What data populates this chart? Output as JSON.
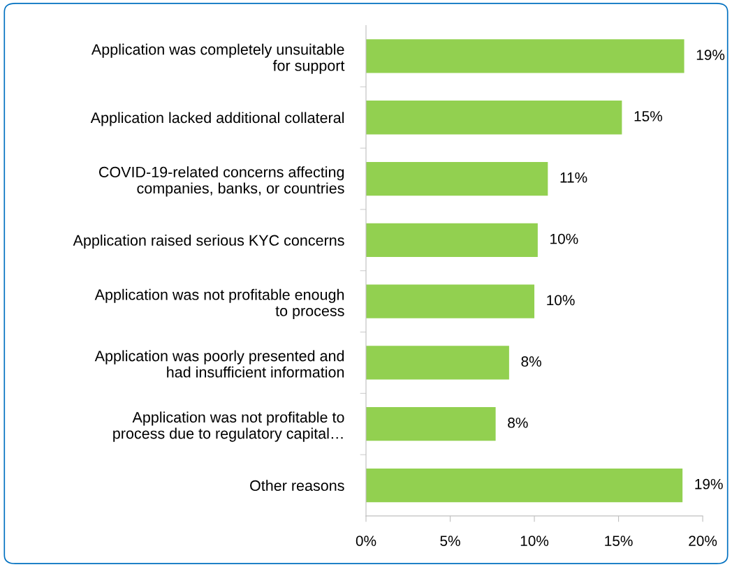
{
  "chart_data": {
    "type": "bar",
    "orientation": "horizontal",
    "categories": [
      "Application was completely unsuitable\nfor support",
      "Application lacked additional collateral",
      "COVID-19-related concerns affecting\ncompanies, banks, or countries",
      "Application raised serious KYC concerns",
      "Application was not profitable enough\nto process",
      "Application was poorly presented and\nhad insufficient information",
      "Application was not profitable to\nprocess due to regulatory capital…",
      "Other reasons"
    ],
    "values": [
      18.9,
      15.2,
      10.8,
      10.2,
      10.0,
      8.5,
      7.7,
      18.8
    ],
    "value_labels": [
      "19%",
      "15%",
      "11%",
      "10%",
      "10%",
      "8%",
      "8%",
      "19%"
    ],
    "color": "#92d050",
    "xlim": [
      0,
      20
    ],
    "xticks": [
      {
        "value": 0,
        "label": "0%"
      },
      {
        "value": 5,
        "label": "5%"
      },
      {
        "value": 10,
        "label": "10%"
      },
      {
        "value": 15,
        "label": "15%"
      },
      {
        "value": 20,
        "label": "20%"
      }
    ],
    "grid": false
  }
}
